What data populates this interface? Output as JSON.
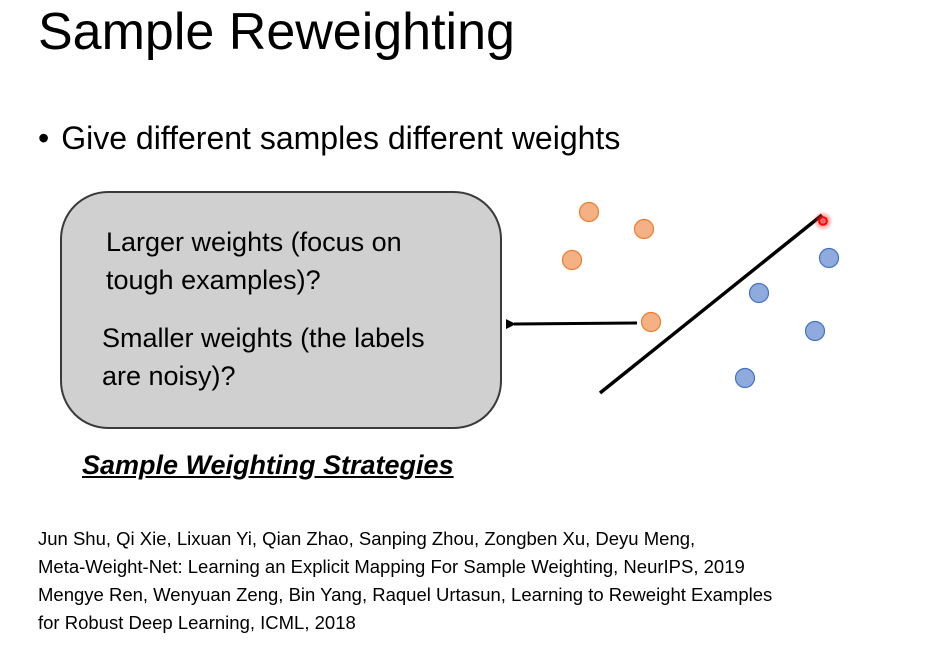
{
  "slide": {
    "title": "Sample Reweighting",
    "bullet": "Give different samples different weights"
  },
  "callout": {
    "line1": "Larger weights (focus on",
    "line2": "tough examples)?",
    "line3": "Smaller weights (the labels",
    "line4": "are noisy)?"
  },
  "caption": "Sample Weighting Strategies",
  "references": [
    "Jun Shu, Qi Xie, Lixuan Yi, Qian Zhao, Sanping Zhou, Zongben Xu, Deyu Meng,",
    "Meta-Weight-Net: Learning an Explicit Mapping For Sample Weighting, NeurIPS, 2019",
    "Mengye Ren, Wenyuan Zeng, Bin Yang, Raquel Urtasun, Learning to Reweight Examples",
    "for Robust Deep Learning, ICML, 2018"
  ],
  "colors": {
    "orange_point": "#f4b183",
    "orange_point_stroke": "#ed7d31",
    "blue_point": "#8faadc",
    "blue_point_stroke": "#4472c4",
    "callout_fill": "#d0d0d0",
    "highlight": "#ff0000"
  }
}
